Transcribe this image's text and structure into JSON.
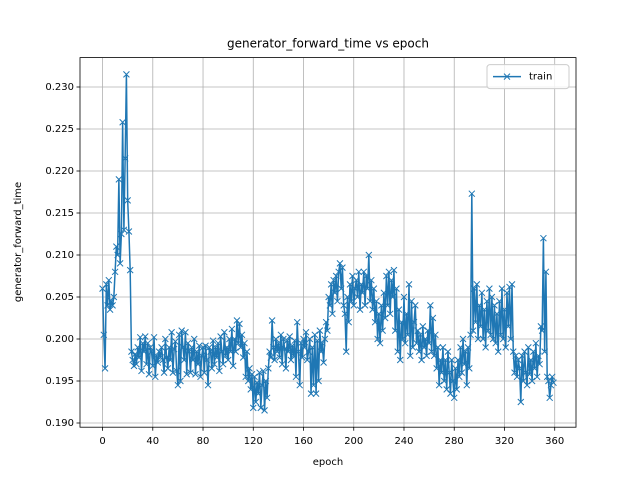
{
  "chart_data": {
    "type": "line",
    "title": "generator_forward_time vs epoch",
    "xlabel": "epoch",
    "ylabel": "generator_forward_time",
    "x": [
      0,
      1,
      2,
      3,
      4,
      5,
      6,
      7,
      8,
      9,
      10,
      11,
      12,
      13,
      14,
      15,
      16,
      17,
      18,
      19,
      20,
      21,
      22,
      23,
      24,
      25,
      26,
      27,
      28,
      29,
      30,
      31,
      32,
      33,
      34,
      35,
      36,
      37,
      38,
      39,
      40,
      41,
      42,
      43,
      44,
      45,
      46,
      47,
      48,
      49,
      50,
      51,
      52,
      53,
      54,
      55,
      56,
      57,
      58,
      59,
      60,
      61,
      62,
      63,
      64,
      65,
      66,
      67,
      68,
      69,
      70,
      71,
      72,
      73,
      74,
      75,
      76,
      77,
      78,
      79,
      80,
      81,
      82,
      83,
      84,
      85,
      86,
      87,
      88,
      89,
      90,
      91,
      92,
      93,
      94,
      95,
      96,
      97,
      98,
      99,
      100,
      101,
      102,
      103,
      104,
      105,
      106,
      107,
      108,
      109,
      110,
      111,
      112,
      113,
      114,
      115,
      116,
      117,
      118,
      119,
      120,
      121,
      122,
      123,
      124,
      125,
      126,
      127,
      128,
      129,
      130,
      131,
      132,
      133,
      134,
      135,
      136,
      137,
      138,
      139,
      140,
      141,
      142,
      143,
      144,
      145,
      146,
      147,
      148,
      149,
      150,
      151,
      152,
      153,
      154,
      155,
      156,
      157,
      158,
      159,
      160,
      161,
      162,
      163,
      164,
      165,
      166,
      167,
      168,
      169,
      170,
      171,
      172,
      173,
      174,
      175,
      176,
      177,
      178,
      179,
      180,
      181,
      182,
      183,
      184,
      185,
      186,
      187,
      188,
      189,
      190,
      191,
      192,
      193,
      194,
      195,
      196,
      197,
      198,
      199,
      200,
      201,
      202,
      203,
      204,
      205,
      206,
      207,
      208,
      209,
      210,
      211,
      212,
      213,
      214,
      215,
      216,
      217,
      218,
      219,
      220,
      221,
      222,
      223,
      224,
      225,
      226,
      227,
      228,
      229,
      230,
      231,
      232,
      233,
      234,
      235,
      236,
      237,
      238,
      239,
      240,
      241,
      242,
      243,
      244,
      245,
      246,
      247,
      248,
      249,
      250,
      251,
      252,
      253,
      254,
      255,
      256,
      257,
      258,
      259,
      260,
      261,
      262,
      263,
      264,
      265,
      266,
      267,
      268,
      269,
      270,
      271,
      272,
      273,
      274,
      275,
      276,
      277,
      278,
      279,
      280,
      281,
      282,
      283,
      284,
      285,
      286,
      287,
      288,
      289,
      290,
      291,
      292,
      293,
      294,
      295,
      296,
      297,
      298,
      299,
      300,
      301,
      302,
      303,
      304,
      305,
      306,
      307,
      308,
      309,
      310,
      311,
      312,
      313,
      314,
      315,
      316,
      317,
      318,
      319,
      320,
      321,
      322,
      323,
      324,
      325,
      326,
      327,
      328,
      329,
      330,
      331,
      332,
      333,
      334,
      335,
      336,
      337,
      338,
      339,
      340,
      341,
      342,
      343,
      344,
      345,
      346,
      347,
      348,
      349,
      350,
      351,
      352,
      353,
      354,
      355,
      356,
      357,
      358,
      359
    ],
    "series": [
      {
        "name": "train",
        "color": "#1f77b4",
        "values": [
          0.206,
          0.2005,
          0.1965,
          0.2065,
          0.204,
          0.207,
          0.2035,
          0.2045,
          0.204,
          0.205,
          0.208,
          0.211,
          0.21,
          0.219,
          0.209,
          0.2125,
          0.2258,
          0.213,
          0.2215,
          0.2315,
          0.2165,
          0.2128,
          0.2082,
          0.1985,
          0.1975,
          0.1968,
          0.1982,
          0.197,
          0.199,
          0.1978,
          0.2002,
          0.1962,
          0.1995,
          0.1985,
          0.2003,
          0.197,
          0.1995,
          0.1958,
          0.199,
          0.1985,
          0.1968,
          0.2002,
          0.1955,
          0.198,
          0.1972,
          0.1985,
          0.1978,
          0.199,
          0.1975,
          0.196,
          0.2,
          0.1978,
          0.1965,
          0.199,
          0.1975,
          0.2008,
          0.196,
          0.1988,
          0.1997,
          0.1962,
          0.1945,
          0.2005,
          0.195,
          0.201,
          0.199,
          0.1975,
          0.2008,
          0.1958,
          0.1995,
          0.1985,
          0.196,
          0.199,
          0.1975,
          0.2,
          0.1958,
          0.1985,
          0.197,
          0.1992,
          0.1955,
          0.198,
          0.199,
          0.196,
          0.1992,
          0.1975,
          0.1945,
          0.199,
          0.1985,
          0.1965,
          0.1998,
          0.197,
          0.199,
          0.1978,
          0.1995,
          0.1962,
          0.2003,
          0.1985,
          0.197,
          0.2008,
          0.198,
          0.199,
          0.1975,
          0.2,
          0.1985,
          0.2012,
          0.1968,
          0.2,
          0.1985,
          0.2022,
          0.1995,
          0.2018,
          0.199,
          0.2005,
          0.1978,
          0.1995,
          0.1955,
          0.1985,
          0.195,
          0.1965,
          0.194,
          0.1958,
          0.1918,
          0.1955,
          0.1925,
          0.1948,
          0.1935,
          0.196,
          0.1918,
          0.1945,
          0.1962,
          0.1915,
          0.195,
          0.193,
          0.1965,
          0.1985,
          0.1978,
          0.2022,
          0.199,
          0.1975,
          0.2,
          0.1985,
          0.1995,
          0.1978,
          0.2005,
          0.197,
          0.2,
          0.1988,
          0.1965,
          0.1998,
          0.1985,
          0.2003,
          0.1975,
          0.1992,
          0.198,
          0.1998,
          0.1955,
          0.202,
          0.1985,
          0.1945,
          0.1995,
          0.1978,
          0.2,
          0.199,
          0.2008,
          0.1975,
          0.1985,
          0.2,
          0.1935,
          0.199,
          0.1945,
          0.2005,
          0.1935,
          0.1998,
          0.195,
          0.201,
          0.1985,
          0.1995,
          0.1972,
          0.2,
          0.202,
          0.201,
          0.205,
          0.204,
          0.2065,
          0.203,
          0.207,
          0.2055,
          0.2075,
          0.2045,
          0.208,
          0.209,
          0.206,
          0.2085,
          0.204,
          0.203,
          0.1985,
          0.205,
          0.202,
          0.2065,
          0.2045,
          0.2075,
          0.204,
          0.206,
          0.207,
          0.205,
          0.208,
          0.2035,
          0.2065,
          0.2055,
          0.208,
          0.204,
          0.2075,
          0.206,
          0.21,
          0.2045,
          0.207,
          0.2035,
          0.206,
          0.202,
          0.2045,
          0.2,
          0.203,
          0.1995,
          0.204,
          0.201,
          0.2055,
          0.2025,
          0.2075,
          0.204,
          0.208,
          0.203,
          0.207,
          0.205,
          0.2082,
          0.201,
          0.206,
          0.1985,
          0.2035,
          0.1975,
          0.202,
          0.2,
          0.205,
          0.1995,
          0.203,
          0.2005,
          0.2065,
          0.198,
          0.2045,
          0.199,
          0.202,
          0.204,
          0.1995,
          0.201,
          0.1985,
          0.2005,
          0.1975,
          0.2015,
          0.199,
          0.2,
          0.198,
          0.201,
          0.1995,
          0.204,
          0.1985,
          0.2025,
          0.198,
          0.2005,
          0.1965,
          0.199,
          0.1945,
          0.1975,
          0.196,
          0.199,
          0.195,
          0.1975,
          0.194,
          0.1985,
          0.196,
          0.1935,
          0.1975,
          0.195,
          0.193,
          0.1965,
          0.194,
          0.1975,
          0.1955,
          0.199,
          0.196,
          0.2,
          0.197,
          0.1985,
          0.1945,
          0.199,
          0.1965,
          0.2005,
          0.2173,
          0.201,
          0.206,
          0.202,
          0.2065,
          0.2,
          0.204,
          0.2015,
          0.2055,
          0.2,
          0.2035,
          0.199,
          0.2045,
          0.201,
          0.206,
          0.2005,
          0.205,
          0.2,
          0.204,
          0.1995,
          0.203,
          0.1985,
          0.2045,
          0.2005,
          0.206,
          0.2,
          0.2035,
          0.199,
          0.2055,
          0.2015,
          0.2062,
          0.2,
          0.2065,
          0.1985,
          0.196,
          0.198,
          0.1955,
          0.1975,
          0.1965,
          0.1925,
          0.198,
          0.195,
          0.1985,
          0.196,
          0.1945,
          0.199,
          0.1958,
          0.1975,
          0.195,
          0.1985,
          0.1965,
          0.1995,
          0.1955,
          0.198,
          0.197,
          0.2015,
          0.201,
          0.212,
          0.1985,
          0.208,
          0.1955,
          0.195,
          0.193,
          0.1945,
          0.1955,
          0.1948
        ]
      }
    ],
    "xlim": [
      -17.95,
      376.95
    ],
    "xticks": [
      0,
      40,
      80,
      120,
      160,
      200,
      240,
      280,
      320,
      360
    ],
    "ylim": [
      0.1895,
      0.2335
    ],
    "yticks": [
      {
        "value": 0.19,
        "label": "0.190"
      },
      0.195,
      {
        "value": 0.2,
        "label": "0.200"
      },
      0.205,
      {
        "value": 0.21,
        "label": "0.210"
      },
      0.215,
      {
        "value": 0.22,
        "label": "0.220"
      },
      0.225,
      {
        "value": 0.23,
        "label": "0.230"
      }
    ],
    "grid": true,
    "legend": "upper right"
  }
}
